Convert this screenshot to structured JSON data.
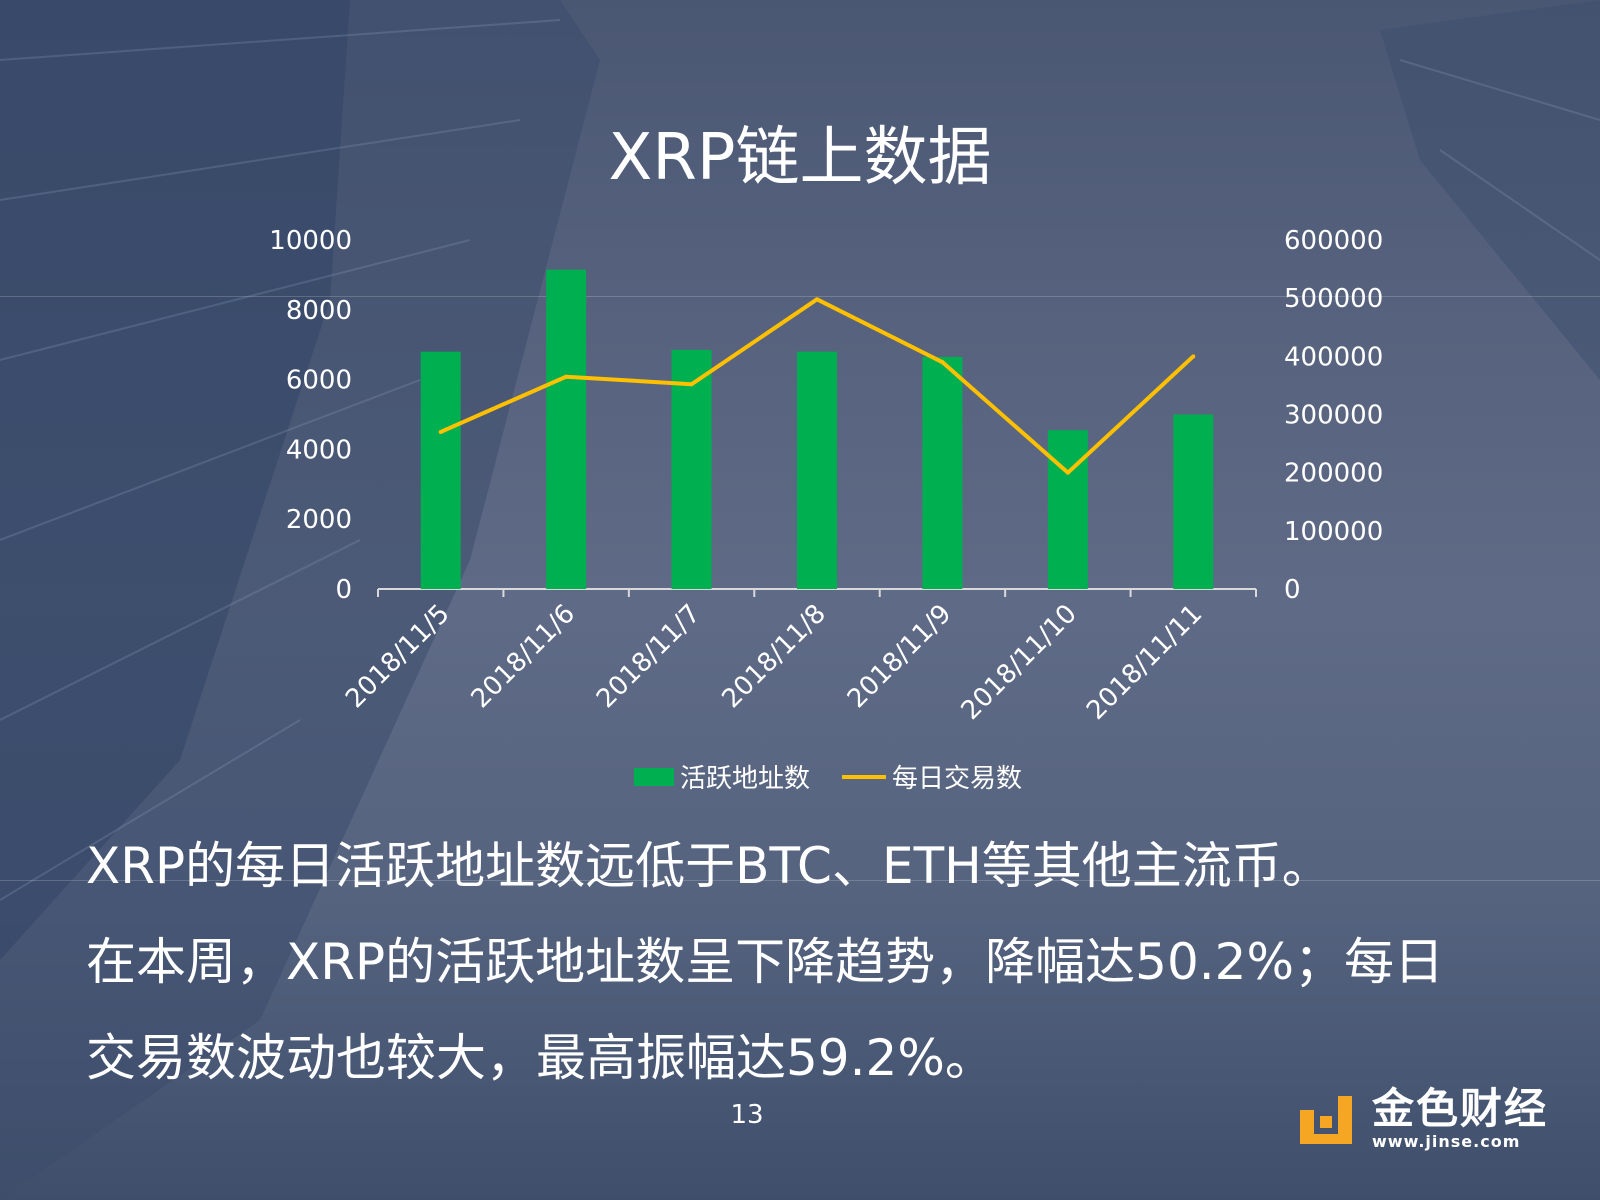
{
  "title": "XRP链上数据",
  "chart_data": {
    "type": "bar",
    "categories": [
      "2018/11/5",
      "2018/11/6",
      "2018/11/7",
      "2018/11/8",
      "2018/11/9",
      "2018/11/10",
      "2018/11/11"
    ],
    "series": [
      {
        "name": "活跃地址数",
        "type": "bar",
        "axis": "left",
        "color": "#00b050",
        "values": [
          6800,
          9150,
          6850,
          6800,
          6650,
          4550,
          5000
        ]
      },
      {
        "name": "每日交易数",
        "type": "line",
        "axis": "right",
        "color": "#ffc000",
        "values": [
          270000,
          365000,
          352000,
          498000,
          390000,
          200000,
          400000
        ]
      }
    ],
    "ylim": [
      0,
      10000
    ],
    "y_ticks": [
      "0",
      "2000",
      "4000",
      "6000",
      "8000",
      "10000"
    ],
    "y2lim": [
      0,
      600000
    ],
    "y2_ticks": [
      "0",
      "100000",
      "200000",
      "300000",
      "400000",
      "500000",
      "600000"
    ],
    "legend": "bottom",
    "grid": false
  },
  "paragraph": [
    "XRP的每日活跃地址数远低于BTC、ETH等其他主流币。",
    "在本周，XRP的活跃地址数呈下降趋势，降幅达50.2%；每日",
    "交易数波动也较大，最高振幅达59.2%。"
  ],
  "page_number": "13",
  "logo": {
    "name": "金色财经",
    "url": "www.jinse.com",
    "color": "#f5a623"
  }
}
